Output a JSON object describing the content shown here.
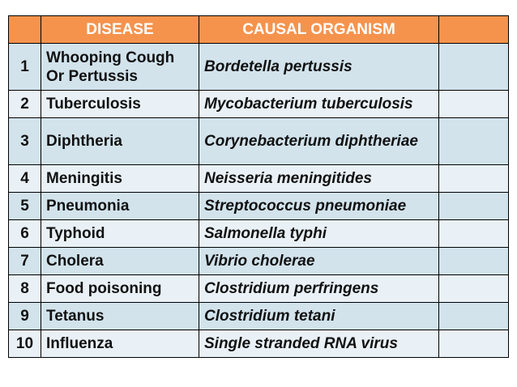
{
  "table": {
    "headers": [
      "",
      "DISEASE",
      "CAUSAL ORGANISM",
      ""
    ],
    "rows": [
      {
        "number": "1",
        "disease": "Whooping Cough Or Pertussis",
        "organism": "Bordetella pertussis"
      },
      {
        "number": "2",
        "disease": "Tuberculosis",
        "organism": "Mycobacterium tuberculosis"
      },
      {
        "number": "3",
        "disease": "Diphtheria",
        "organism": "Corynebacterium diphtheriae"
      },
      {
        "number": "4",
        "disease": "Meningitis",
        "organism": "Neisseria meningitides"
      },
      {
        "number": "5",
        "disease": "Pneumonia",
        "organism": "Streptococcus pneumoniae"
      },
      {
        "number": "6",
        "disease": "Typhoid",
        "organism": "Salmonella typhi"
      },
      {
        "number": "7",
        "disease": "Cholera",
        "organism": "Vibrio cholerae"
      },
      {
        "number": "8",
        "disease": "Food poisoning",
        "organism": "Clostridium perfringens"
      },
      {
        "number": "9",
        "disease": "Tetanus",
        "organism": "Clostridium tetani"
      },
      {
        "number": "10",
        "disease": "Influenza",
        "organism": "Single stranded RNA virus"
      }
    ]
  },
  "colors": {
    "header_background": "#f5934d",
    "header_text": "#ffffff",
    "row_background": "#d2e3ec",
    "row_background_alt": "#e9f1f6",
    "border": "#000000"
  }
}
